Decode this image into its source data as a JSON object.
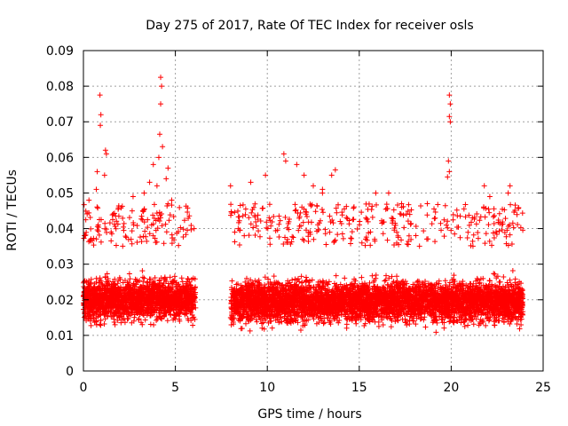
{
  "chart_data": {
    "type": "scatter",
    "title": "Day 275 of 2017, Rate Of TEC Index for receiver osls",
    "xlabel": "GPS time / hours",
    "ylabel": "ROTI / TECUs",
    "xlim": [
      0,
      25
    ],
    "ylim": [
      0,
      0.09
    ],
    "x_ticks": [
      0,
      5,
      10,
      15,
      20,
      25
    ],
    "x_tick_labels": [
      "0",
      "5",
      "10",
      "15",
      "20",
      "25"
    ],
    "y_ticks": [
      0,
      0.01,
      0.02,
      0.03,
      0.04,
      0.05,
      0.06,
      0.07,
      0.08,
      0.09
    ],
    "y_tick_labels": [
      "0",
      "0.01",
      "0.02",
      "0.03",
      "0.04",
      "0.05",
      "0.06",
      "0.07",
      "0.08",
      "0.09"
    ],
    "grid": true,
    "marker": "+",
    "marker_color": "#ff0000",
    "data_segments": [
      {
        "x_start": 0.0,
        "x_end": 6.1,
        "typical_range": [
          0.008,
          0.035
        ]
      },
      {
        "x_start": 8.0,
        "x_end": 23.9,
        "typical_range": [
          0.007,
          0.035
        ]
      }
    ],
    "gap": [
      6.1,
      8.0
    ],
    "outliers": [
      [
        0.9,
        0.0775
      ],
      [
        0.95,
        0.072
      ],
      [
        0.92,
        0.069
      ],
      [
        1.2,
        0.062
      ],
      [
        1.25,
        0.061
      ],
      [
        1.15,
        0.055
      ],
      [
        0.75,
        0.056
      ],
      [
        0.7,
        0.051
      ],
      [
        0.3,
        0.048
      ],
      [
        4.2,
        0.0825
      ],
      [
        4.25,
        0.08
      ],
      [
        4.2,
        0.075
      ],
      [
        4.15,
        0.0665
      ],
      [
        4.3,
        0.063
      ],
      [
        4.1,
        0.06
      ],
      [
        3.8,
        0.058
      ],
      [
        4.6,
        0.057
      ],
      [
        4.5,
        0.054
      ],
      [
        3.6,
        0.053
      ],
      [
        2.7,
        0.049
      ],
      [
        3.3,
        0.05
      ],
      [
        4.0,
        0.052
      ],
      [
        4.8,
        0.048
      ],
      [
        8.0,
        0.052
      ],
      [
        9.1,
        0.053
      ],
      [
        9.9,
        0.055
      ],
      [
        10.9,
        0.061
      ],
      [
        11.0,
        0.059
      ],
      [
        11.6,
        0.058
      ],
      [
        12.0,
        0.055
      ],
      [
        12.5,
        0.052
      ],
      [
        13.0,
        0.051
      ],
      [
        13.7,
        0.0565
      ],
      [
        13.5,
        0.055
      ],
      [
        13.0,
        0.05
      ],
      [
        15.9,
        0.05
      ],
      [
        16.6,
        0.05
      ],
      [
        19.9,
        0.0775
      ],
      [
        19.95,
        0.075
      ],
      [
        19.9,
        0.0715
      ],
      [
        19.95,
        0.07
      ],
      [
        19.85,
        0.059
      ],
      [
        19.9,
        0.056
      ],
      [
        19.8,
        0.0545
      ],
      [
        21.8,
        0.052
      ],
      [
        23.1,
        0.05
      ],
      [
        23.2,
        0.052
      ],
      [
        22.1,
        0.049
      ],
      [
        18.7,
        0.047
      ],
      [
        17.3,
        0.047
      ]
    ]
  }
}
